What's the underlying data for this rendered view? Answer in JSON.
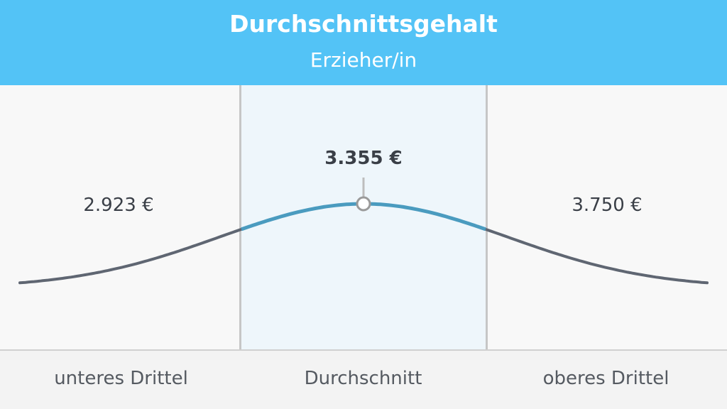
{
  "header": {
    "title": "Durchschnittsgehalt",
    "subtitle": "Erzieher/in"
  },
  "values": {
    "lower": "2.923 €",
    "average": "3.355 €",
    "upper": "3.750 €"
  },
  "footer": {
    "lower": "unteres Drittel",
    "average": "Durchschnitt",
    "upper": "oberes Drittel"
  },
  "colors": {
    "header": "#53c3f6",
    "curve": "#5f6672",
    "curve_highlight": "#4a9bbf",
    "highlight_bg": "#eef6fb"
  }
}
